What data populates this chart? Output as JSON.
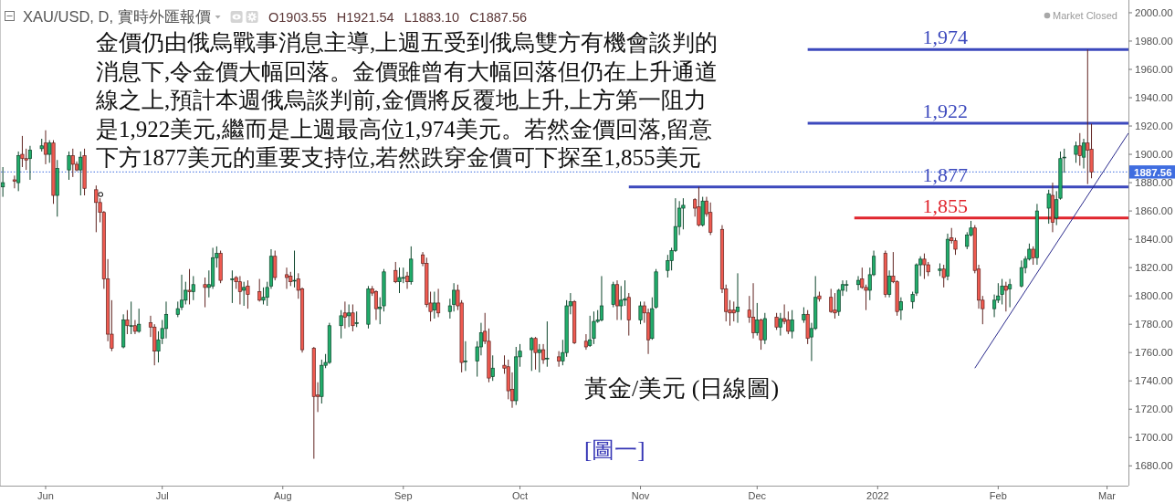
{
  "chart_data": {
    "type": "candlestick",
    "title": "XAU/USD, D, 實時外匯報價",
    "subtitle": "O1903.55 H1921.54 L1883.10 C1887.56",
    "x": [
      "2021-05-21",
      "2021-05-24",
      "2021-05-25",
      "2021-05-26",
      "2021-05-27",
      "2021-05-28",
      "2021-05-31",
      "2021-06-01",
      "2021-06-02",
      "2021-06-03",
      "2021-06-04",
      "2021-06-07",
      "2021-06-08",
      "2021-06-09",
      "2021-06-10",
      "2021-06-11",
      "2021-06-14",
      "2021-06-15",
      "2021-06-16",
      "2021-06-17",
      "2021-06-18",
      "2021-06-21",
      "2021-06-22",
      "2021-06-23",
      "2021-06-24",
      "2021-06-25",
      "2021-06-28",
      "2021-06-29",
      "2021-06-30",
      "2021-07-01",
      "2021-07-02",
      "2021-07-05",
      "2021-07-06",
      "2021-07-07",
      "2021-07-08",
      "2021-07-09",
      "2021-07-12",
      "2021-07-13",
      "2021-07-14",
      "2021-07-15",
      "2021-07-16",
      "2021-07-19",
      "2021-07-20",
      "2021-07-21",
      "2021-07-22",
      "2021-07-23",
      "2021-07-26",
      "2021-07-27",
      "2021-07-28",
      "2021-07-29",
      "2021-07-30",
      "2021-08-02",
      "2021-08-03",
      "2021-08-04",
      "2021-08-05",
      "2021-08-06",
      "2021-08-09",
      "2021-08-10",
      "2021-08-11",
      "2021-08-12",
      "2021-08-13",
      "2021-08-16",
      "2021-08-17",
      "2021-08-18",
      "2021-08-19",
      "2021-08-20",
      "2021-08-23",
      "2021-08-24",
      "2021-08-25",
      "2021-08-26",
      "2021-08-27",
      "2021-08-30",
      "2021-08-31",
      "2021-09-01",
      "2021-09-02",
      "2021-09-03",
      "2021-09-06",
      "2021-09-07",
      "2021-09-08",
      "2021-09-09",
      "2021-09-10",
      "2021-09-13",
      "2021-09-14",
      "2021-09-15",
      "2021-09-16",
      "2021-09-17",
      "2021-09-20",
      "2021-09-21",
      "2021-09-22",
      "2021-09-23",
      "2021-09-24",
      "2021-09-27",
      "2021-09-28",
      "2021-09-29",
      "2021-09-30",
      "2021-10-01",
      "2021-10-04",
      "2021-10-05",
      "2021-10-06",
      "2021-10-07",
      "2021-10-08",
      "2021-10-11",
      "2021-10-12",
      "2021-10-13",
      "2021-10-14",
      "2021-10-15",
      "2021-10-18",
      "2021-10-19",
      "2021-10-20",
      "2021-10-21",
      "2021-10-22",
      "2021-10-25",
      "2021-10-26",
      "2021-10-27",
      "2021-10-28",
      "2021-10-29",
      "2021-11-01",
      "2021-11-02",
      "2021-11-03",
      "2021-11-04",
      "2021-11-05",
      "2021-11-08",
      "2021-11-09",
      "2021-11-10",
      "2021-11-11",
      "2021-11-12",
      "2021-11-15",
      "2021-11-16",
      "2021-11-17",
      "2021-11-18",
      "2021-11-19",
      "2021-11-22",
      "2021-11-23",
      "2021-11-24",
      "2021-11-25",
      "2021-11-26",
      "2021-11-29",
      "2021-11-30",
      "2021-12-01",
      "2021-12-02",
      "2021-12-03",
      "2021-12-06",
      "2021-12-07",
      "2021-12-08",
      "2021-12-09",
      "2021-12-10",
      "2021-12-13",
      "2021-12-14",
      "2021-12-15",
      "2021-12-16",
      "2021-12-17",
      "2021-12-20",
      "2021-12-21",
      "2021-12-22",
      "2021-12-23",
      "2021-12-24",
      "2021-12-27",
      "2021-12-28",
      "2021-12-29",
      "2021-12-30",
      "2021-12-31",
      "2022-01-03",
      "2022-01-04",
      "2022-01-05",
      "2022-01-06",
      "2022-01-07",
      "2022-01-10",
      "2022-01-11",
      "2022-01-12",
      "2022-01-13",
      "2022-01-14",
      "2022-01-17",
      "2022-01-18",
      "2022-01-19",
      "2022-01-20",
      "2022-01-21",
      "2022-01-24",
      "2022-01-25",
      "2022-01-26",
      "2022-01-27",
      "2022-01-28",
      "2022-01-31",
      "2022-02-01",
      "2022-02-02",
      "2022-02-03",
      "2022-02-04",
      "2022-02-07",
      "2022-02-08",
      "2022-02-09",
      "2022-02-10",
      "2022-02-11",
      "2022-02-14",
      "2022-02-15",
      "2022-02-16",
      "2022-02-17",
      "2022-02-18",
      "2022-02-21",
      "2022-02-22",
      "2022-02-23",
      "2022-02-24",
      "2022-02-25"
    ],
    "ohlc": [
      [
        1877,
        1891,
        1870,
        1880
      ],
      [
        1882,
        1885,
        1876,
        1881
      ],
      [
        1880,
        1902,
        1874,
        1899
      ],
      [
        1900,
        1913,
        1891,
        1897
      ],
      [
        1897,
        1904,
        1889,
        1896
      ],
      [
        1897,
        1906,
        1882,
        1903
      ],
      [
        1904,
        1911,
        1902,
        1906
      ],
      [
        1908,
        1917,
        1893,
        1900
      ],
      [
        1900,
        1910,
        1894,
        1908
      ],
      [
        1908,
        1910,
        1865,
        1871
      ],
      [
        1871,
        1896,
        1856,
        1890
      ],
      [
        1889,
        1902,
        1882,
        1899
      ],
      [
        1899,
        1904,
        1884,
        1893
      ],
      [
        1893,
        1895,
        1888,
        1889
      ],
      [
        1889,
        1902,
        1871,
        1898
      ],
      [
        1899,
        1904,
        1871,
        1876
      ],
      [
        1875,
        1878,
        1845,
        1866
      ],
      [
        1866,
        1869,
        1852,
        1859
      ],
      [
        1859,
        1860,
        1805,
        1812
      ],
      [
        1812,
        1826,
        1768,
        1773
      ],
      [
        1773,
        1797,
        1761,
        1763
      ],
      [
        1764,
        1787,
        1763,
        1783
      ],
      [
        1783,
        1790,
        1773,
        1779
      ],
      [
        1779,
        1796,
        1773,
        1779
      ],
      [
        1779,
        1783,
        1773,
        1775
      ],
      [
        1775,
        1791,
        1774,
        1780
      ],
      [
        1781,
        1786,
        1771,
        1778
      ],
      [
        1778,
        1780,
        1751,
        1761
      ],
      [
        1761,
        1775,
        1753,
        1769
      ],
      [
        1770,
        1783,
        1766,
        1777
      ],
      [
        1777,
        1796,
        1770,
        1787
      ],
      [
        1787,
        1796,
        1785,
        1791
      ],
      [
        1792,
        1815,
        1790,
        1797
      ],
      [
        1797,
        1810,
        1794,
        1804
      ],
      [
        1804,
        1819,
        1794,
        1803
      ],
      [
        1803,
        1814,
        1797,
        1808
      ],
      [
        1808,
        1813,
        1792,
        1806
      ],
      [
        1806,
        1818,
        1799,
        1808
      ],
      [
        1807,
        1834,
        1805,
        1827
      ],
      [
        1827,
        1835,
        1820,
        1830
      ],
      [
        1830,
        1832,
        1809,
        1811
      ],
      [
        1812,
        1818,
        1795,
        1812
      ],
      [
        1813,
        1814,
        1805,
        1810
      ],
      [
        1810,
        1814,
        1794,
        1803
      ],
      [
        1804,
        1810,
        1793,
        1806
      ],
      [
        1807,
        1811,
        1791,
        1801
      ],
      [
        1803,
        1812,
        1796,
        1797
      ],
      [
        1797,
        1806,
        1794,
        1799
      ],
      [
        1799,
        1810,
        1793,
        1806
      ],
      [
        1807,
        1833,
        1805,
        1828
      ],
      [
        1828,
        1832,
        1811,
        1813
      ],
      [
        1815,
        1820,
        1805,
        1813
      ],
      [
        1814,
        1817,
        1807,
        1810
      ],
      [
        1811,
        1832,
        1806,
        1811
      ],
      [
        1812,
        1816,
        1798,
        1804
      ],
      [
        1805,
        1806,
        1760,
        1762
      ],
      [
        1763,
        1764,
        1685,
        1729
      ],
      [
        1730,
        1739,
        1718,
        1729
      ],
      [
        1729,
        1755,
        1724,
        1751
      ],
      [
        1751,
        1759,
        1749,
        1753
      ],
      [
        1753,
        1781,
        1752,
        1779
      ],
      [
        1779,
        1790,
        1770,
        1786
      ],
      [
        1788,
        1796,
        1777,
        1785
      ],
      [
        1786,
        1794,
        1778,
        1788
      ],
      [
        1788,
        1794,
        1775,
        1779
      ],
      [
        1781,
        1789,
        1778,
        1781
      ],
      [
        1780,
        1807,
        1777,
        1805
      ],
      [
        1805,
        1807,
        1800,
        1802
      ],
      [
        1803,
        1804,
        1783,
        1791
      ],
      [
        1791,
        1799,
        1780,
        1792
      ],
      [
        1793,
        1819,
        1789,
        1817
      ],
      [
        1818,
        1824,
        1809,
        1810
      ],
      [
        1810,
        1820,
        1802,
        1813
      ],
      [
        1813,
        1820,
        1809,
        1813
      ],
      [
        1814,
        1817,
        1805,
        1810
      ],
      [
        1810,
        1835,
        1808,
        1826
      ],
      [
        1829,
        1831,
        1821,
        1823
      ],
      [
        1823,
        1827,
        1792,
        1794
      ],
      [
        1795,
        1803,
        1782,
        1789
      ],
      [
        1790,
        1803,
        1784,
        1795
      ],
      [
        1795,
        1805,
        1785,
        1788
      ],
      [
        1789,
        1798,
        1784,
        1793
      ],
      [
        1794,
        1809,
        1789,
        1804
      ],
      [
        1804,
        1808,
        1790,
        1793
      ],
      [
        1795,
        1797,
        1746,
        1753
      ],
      [
        1754,
        1768,
        1747,
        1754
      ],
      [
        1754,
        1768,
        1743,
        1764
      ],
      [
        1764,
        1781,
        1758,
        1774
      ],
      [
        1775,
        1788,
        1766,
        1768
      ],
      [
        1768,
        1777,
        1739,
        1742
      ],
      [
        1743,
        1758,
        1740,
        1749
      ],
      [
        1751,
        1758,
        1745,
        1749
      ],
      [
        1750,
        1755,
        1727,
        1733
      ],
      [
        1734,
        1746,
        1721,
        1726
      ],
      [
        1726,
        1764,
        1723,
        1757
      ],
      [
        1757,
        1766,
        1750,
        1761
      ],
      [
        1762,
        1771,
        1747,
        1770
      ],
      [
        1770,
        1771,
        1748,
        1760
      ],
      [
        1760,
        1766,
        1746,
        1762
      ],
      [
        1762,
        1766,
        1752,
        1755
      ],
      [
        1756,
        1782,
        1750,
        1756
      ],
      [
        1757,
        1761,
        1750,
        1754
      ],
      [
        1754,
        1769,
        1751,
        1760
      ],
      [
        1760,
        1797,
        1757,
        1793
      ],
      [
        1793,
        1802,
        1787,
        1796
      ],
      [
        1796,
        1797,
        1766,
        1767
      ],
      [
        1768,
        1773,
        1762,
        1764
      ],
      [
        1765,
        1786,
        1764,
        1769
      ],
      [
        1770,
        1789,
        1766,
        1782
      ],
      [
        1782,
        1790,
        1781,
        1783
      ],
      [
        1783,
        1814,
        1782,
        1793
      ],
      [
        1794,
        1810,
        1792,
        1808
      ],
      [
        1808,
        1811,
        1783,
        1793
      ],
      [
        1793,
        1807,
        1783,
        1797
      ],
      [
        1797,
        1811,
        1793,
        1798
      ],
      [
        1799,
        1802,
        1772,
        1783
      ],
      [
        1783,
        1796,
        1780,
        1793
      ],
      [
        1793,
        1796,
        1781,
        1788
      ],
      [
        1788,
        1791,
        1759,
        1769
      ],
      [
        1770,
        1799,
        1769,
        1791
      ],
      [
        1792,
        1819,
        1791,
        1817
      ],
      [
        1818,
        1829,
        1813,
        1825
      ],
      [
        1825,
        1834,
        1818,
        1832
      ],
      [
        1832,
        1869,
        1831,
        1849
      ],
      [
        1849,
        1867,
        1843,
        1862
      ],
      [
        1862,
        1869,
        1847,
        1864
      ],
      [
        1868,
        1869,
        1856,
        1862
      ],
      [
        1863,
        1877,
        1849,
        1850
      ],
      [
        1850,
        1870,
        1849,
        1867
      ],
      [
        1867,
        1870,
        1856,
        1858
      ],
      [
        1859,
        1866,
        1843,
        1845
      ],
      [
        1847,
        1850,
        1802,
        1805
      ],
      [
        1805,
        1808,
        1782,
        1789
      ],
      [
        1790,
        1797,
        1779,
        1788
      ],
      [
        1790,
        1796,
        1782,
        1788
      ],
      [
        1789,
        1816,
        1781,
        1792
      ],
      [
        1790,
        1800,
        1781,
        1785
      ],
      [
        1785,
        1809,
        1770,
        1774
      ],
      [
        1774,
        1795,
        1772,
        1783
      ],
      [
        1783,
        1784,
        1762,
        1769
      ],
      [
        1769,
        1788,
        1766,
        1784
      ],
      [
        1785,
        1788,
        1776,
        1778
      ],
      [
        1778,
        1788,
        1772,
        1784
      ],
      [
        1784,
        1794,
        1780,
        1782
      ],
      [
        1783,
        1789,
        1773,
        1775
      ],
      [
        1775,
        1790,
        1770,
        1783
      ],
      [
        1783,
        1792,
        1781,
        1787
      ],
      [
        1787,
        1790,
        1766,
        1770
      ],
      [
        1771,
        1781,
        1754,
        1777
      ],
      [
        1777,
        1814,
        1776,
        1799
      ],
      [
        1800,
        1803,
        1796,
        1798
      ],
      [
        1799,
        1805,
        1788,
        1789
      ],
      [
        1790,
        1802,
        1784,
        1788
      ],
      [
        1789,
        1805,
        1786,
        1804
      ],
      [
        1804,
        1811,
        1800,
        1808
      ],
      [
        1808,
        1811,
        1803,
        1808
      ],
      [
        1808,
        1814,
        1804,
        1811
      ],
      [
        1812,
        1820,
        1805,
        1806
      ],
      [
        1806,
        1808,
        1790,
        1804
      ],
      [
        1804,
        1820,
        1797,
        1815
      ],
      [
        1815,
        1832,
        1814,
        1828
      ],
      [
        1830,
        1832,
        1799,
        1801
      ],
      [
        1801,
        1818,
        1799,
        1814
      ],
      [
        1814,
        1831,
        1809,
        1810
      ],
      [
        1810,
        1811,
        1786,
        1789
      ],
      [
        1790,
        1799,
        1783,
        1796
      ],
      [
        1796,
        1803,
        1791,
        1801
      ],
      [
        1802,
        1823,
        1800,
        1822
      ],
      [
        1822,
        1828,
        1814,
        1826
      ],
      [
        1826,
        1830,
        1812,
        1822
      ],
      [
        1822,
        1824,
        1814,
        1817
      ],
      [
        1818,
        1823,
        1814,
        1819
      ],
      [
        1819,
        1822,
        1806,
        1813
      ],
      [
        1814,
        1844,
        1811,
        1840
      ],
      [
        1841,
        1848,
        1837,
        1839
      ],
      [
        1839,
        1841,
        1829,
        1833
      ],
      [
        1835,
        1845,
        1833,
        1843
      ],
      [
        1843,
        1853,
        1842,
        1848
      ],
      [
        1848,
        1850,
        1816,
        1818
      ],
      [
        1819,
        1822,
        1791,
        1797
      ],
      [
        1797,
        1800,
        1780,
        1791
      ],
      [
        1791,
        1801,
        1785,
        1797
      ],
      [
        1797,
        1809,
        1795,
        1800
      ],
      [
        1801,
        1812,
        1794,
        1807
      ],
      [
        1807,
        1810,
        1789,
        1804
      ],
      [
        1805,
        1812,
        1792,
        1808
      ],
      [
        1807,
        1825,
        1806,
        1820
      ],
      [
        1820,
        1828,
        1816,
        1826
      ],
      [
        1826,
        1837,
        1825,
        1833
      ],
      [
        1833,
        1835,
        1822,
        1827
      ],
      [
        1827,
        1865,
        1822,
        1860
      ],
      [
        1862,
        1875,
        1851,
        1872
      ],
      [
        1871,
        1880,
        1845,
        1852
      ],
      [
        1855,
        1874,
        1850,
        1868
      ],
      [
        1869,
        1902,
        1868,
        1897
      ],
      [
        1898,
        1904,
        1887,
        1898
      ],
      [
        1900,
        1909,
        1894,
        1906
      ],
      [
        1906,
        1915,
        1892,
        1899
      ],
      [
        1898,
        1911,
        1890,
        1908
      ],
      [
        1908,
        1974,
        1879,
        1903
      ],
      [
        1903.55,
        1921.54,
        1883.1,
        1887.56
      ]
    ],
    "colors": [
      "#21ad6b",
      "#ef5a50",
      "#21ad6b",
      "#ef5a50",
      "#ef5a50",
      "#21ad6b",
      "#21ad6b",
      "#ef5a50",
      "#21ad6b",
      "#ef5a50",
      "#21ad6b",
      "#21ad6b",
      "#ef5a50",
      "#ef5a50",
      "#21ad6b",
      "#ef5a50",
      "#ef5a50",
      "#ef5a50",
      "#ef5a50",
      "#ef5a50",
      "#ef5a50",
      "#21ad6b",
      "#ef5a50",
      "#21ad6b",
      "#ef5a50",
      "#21ad6b",
      "#ef5a50",
      "#ef5a50",
      "#21ad6b",
      "#21ad6b",
      "#21ad6b",
      "#21ad6b",
      "#21ad6b",
      "#21ad6b",
      "#ef5a50",
      "#21ad6b",
      "#ef5a50",
      "#21ad6b",
      "#21ad6b",
      "#21ad6b",
      "#ef5a50",
      "#21ad6b",
      "#ef5a50",
      "#ef5a50",
      "#21ad6b",
      "#ef5a50",
      "#ef5a50",
      "#21ad6b",
      "#21ad6b",
      "#21ad6b",
      "#ef5a50",
      "#ef5a50",
      "#ef5a50",
      "#21ad6b",
      "#ef5a50",
      "#ef5a50",
      "#ef5a50",
      "#ef5a50",
      "#21ad6b",
      "#21ad6b",
      "#21ad6b",
      "#21ad6b",
      "#ef5a50",
      "#21ad6b",
      "#ef5a50",
      "#21ad6b",
      "#21ad6b",
      "#ef5a50",
      "#ef5a50",
      "#21ad6b",
      "#21ad6b",
      "#ef5a50",
      "#21ad6b",
      "#21ad6b",
      "#ef5a50",
      "#21ad6b",
      "#ef5a50",
      "#ef5a50",
      "#ef5a50",
      "#21ad6b",
      "#ef5a50",
      "#21ad6b",
      "#21ad6b",
      "#ef5a50",
      "#ef5a50",
      "#21ad6b",
      "#21ad6b",
      "#21ad6b",
      "#ef5a50",
      "#ef5a50",
      "#21ad6b",
      "#ef5a50",
      "#ef5a50",
      "#ef5a50",
      "#21ad6b",
      "#21ad6b",
      "#21ad6b",
      "#ef5a50",
      "#21ad6b",
      "#ef5a50",
      "#21ad6b",
      "#ef5a50",
      "#21ad6b",
      "#21ad6b",
      "#21ad6b",
      "#ef5a50",
      "#ef5a50",
      "#21ad6b",
      "#21ad6b",
      "#21ad6b",
      "#21ad6b",
      "#21ad6b",
      "#ef5a50",
      "#21ad6b",
      "#21ad6b",
      "#ef5a50",
      "#21ad6b",
      "#ef5a50",
      "#ef5a50",
      "#21ad6b",
      "#21ad6b",
      "#21ad6b",
      "#21ad6b",
      "#21ad6b",
      "#21ad6b",
      "#21ad6b",
      "#ef5a50",
      "#ef5a50",
      "#21ad6b",
      "#ef5a50",
      "#ef5a50",
      "#ef5a50",
      "#ef5a50",
      "#ef5a50",
      "#ef5a50",
      "#21ad6b",
      "#ef5a50",
      "#ef5a50",
      "#21ad6b",
      "#ef5a50",
      "#21ad6b",
      "#ef5a50",
      "#21ad6b",
      "#ef5a50",
      "#ef5a50",
      "#21ad6b",
      "#21ad6b",
      "#ef5a50",
      "#21ad6b",
      "#21ad6b",
      "#ef5a50",
      "#ef5a50",
      "#ef5a50",
      "#21ad6b",
      "#21ad6b",
      "#21ad6b",
      "#21ad6b",
      "#ef5a50",
      "#ef5a50",
      "#21ad6b",
      "#21ad6b",
      "#ef5a50",
      "#21ad6b",
      "#ef5a50",
      "#ef5a50",
      "#21ad6b",
      "#21ad6b",
      "#21ad6b",
      "#21ad6b",
      "#ef5a50",
      "#ef5a50",
      "#21ad6b",
      "#ef5a50",
      "#21ad6b",
      "#ef5a50",
      "#ef5a50",
      "#21ad6b",
      "#21ad6b",
      "#ef5a50",
      "#ef5a50",
      "#ef5a50",
      "#21ad6b",
      "#21ad6b",
      "#21ad6b",
      "#ef5a50",
      "#21ad6b",
      "#21ad6b",
      "#21ad6b",
      "#21ad6b",
      "#ef5a50",
      "#21ad6b",
      "#21ad6b",
      "#ef5a50",
      "#21ad6b",
      "#21ad6b",
      "#21ad6b",
      "#21ad6b",
      "#ef5a50",
      "#21ad6b",
      "#ef5a50",
      "#ef5a50"
    ],
    "series": [
      {
        "type": "line",
        "name": "1,974",
        "color": "#3c49bd",
        "x": [
          "2021-12-14",
          "2022-03-06T12:00"
        ],
        "values": [
          1974,
          1974
        ]
      },
      {
        "type": "line",
        "name": "1,922",
        "color": "#3c49bd",
        "x": [
          "2021-12-14",
          "2022-03-06T12:00"
        ],
        "values": [
          1922,
          1922
        ]
      },
      {
        "type": "line",
        "name": "1,877",
        "color": "#3c49bd",
        "x": [
          "2021-10-29",
          "2022-03-06T12:00"
        ],
        "values": [
          1877,
          1877
        ]
      },
      {
        "type": "line",
        "name": "1,855",
        "color": "#e0252d",
        "x": [
          "2021-12-26",
          "2022-03-06T12:00"
        ],
        "values": [
          1855,
          1855
        ]
      },
      {
        "type": "line",
        "color": "#2a2a8c",
        "x": [
          "2022-01-26",
          "2022-03-06T12:00"
        ],
        "values": [
          1749,
          1915
        ]
      }
    ],
    "xlim": [
      "2021-05-20T12:00",
      "2022-03-06T12:00"
    ],
    "xticks": [
      {
        "value": "2021-06-01",
        "label": "Jun"
      },
      {
        "value": "2021-07-01",
        "label": "Jul"
      },
      {
        "value": "2021-08-01",
        "label": "Aug"
      },
      {
        "value": "2021-09-01",
        "label": "Sep"
      },
      {
        "value": "2021-10-01",
        "label": "Oct"
      },
      {
        "value": "2021-11-01",
        "label": "Nov"
      },
      {
        "value": "2021-12-01",
        "label": "Dec"
      },
      {
        "value": "2022-01-01",
        "label": "2022"
      },
      {
        "value": "2022-02-01",
        "label": "Feb"
      },
      {
        "value": "2022-03-01",
        "label": "Mar"
      }
    ],
    "ylim": [
      1666,
      2009
    ],
    "yticks": [
      {
        "value": 1680,
        "label": "1680.00"
      },
      {
        "value": 1700,
        "label": "1700.00"
      },
      {
        "value": 1720,
        "label": "1720.00"
      },
      {
        "value": 1740,
        "label": "1740.00"
      },
      {
        "value": 1760,
        "label": "1760.00"
      },
      {
        "value": 1780,
        "label": "1780.00"
      },
      {
        "value": 1800,
        "label": "1800.00"
      },
      {
        "value": 1820,
        "label": "1820.00"
      },
      {
        "value": 1840,
        "label": "1840.00"
      },
      {
        "value": 1860,
        "label": "1860.00"
      },
      {
        "value": 1880,
        "label": "1880.00"
      },
      {
        "value": 1900,
        "label": "1900.00"
      },
      {
        "value": 1920,
        "label": "1920.00"
      },
      {
        "value": 1940,
        "label": "1940.00"
      },
      {
        "value": 1960,
        "label": "1960.00"
      },
      {
        "value": 1980,
        "label": "1980.00"
      },
      {
        "value": 2000,
        "label": "2000.00"
      }
    ],
    "ref_lines": [
      {
        "axis": "y",
        "value": 1887.56,
        "label": "1887.56",
        "color": "#3f6de0",
        "line_style": "dotted"
      }
    ],
    "annotations": [
      "Market Closed",
      "金價仍由俄烏戰事消息主導,上週五受到俄烏雙方有機會談判的消息下,令金價大幅回落。金價雖曾有大幅回落但仍在上升通道線之上,預計本週俄烏談判前,金價將反覆地上升,上方第一阻力是1,922美元,繼而是上週最高位1,974美元。若然金價回落,留意下方1877美元的重要支持位,若然跌穿金價可下探至1,855美元。",
      "黃金/美元 (日線圖)",
      "[圖一]"
    ]
  }
}
